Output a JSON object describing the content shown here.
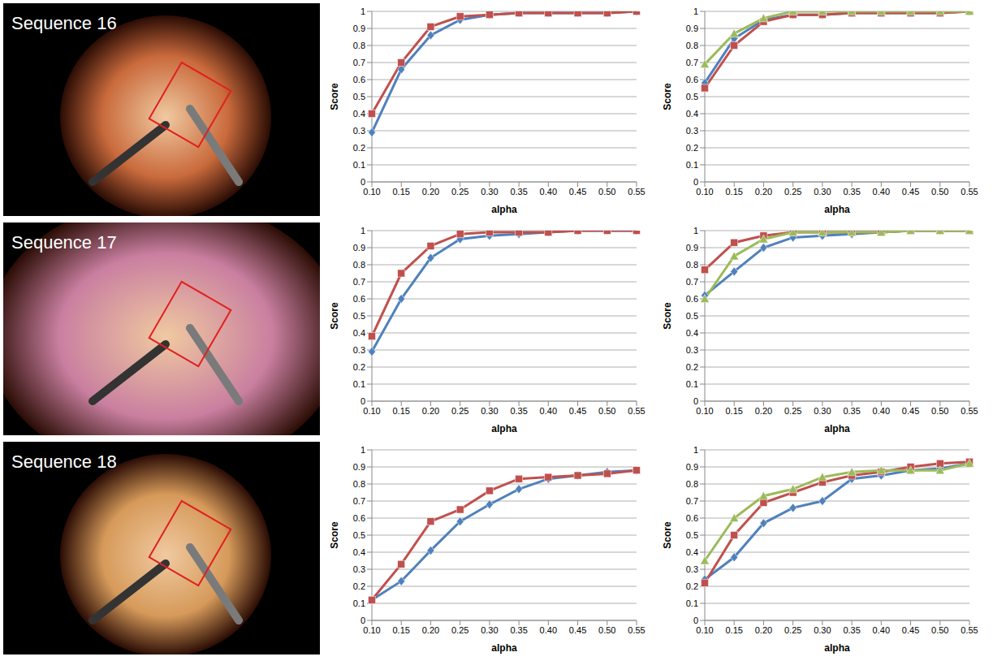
{
  "images": [
    {
      "label": "Sequence 16"
    },
    {
      "label": "Sequence 17"
    },
    {
      "label": "Sequence 18"
    }
  ],
  "chart_data": [
    {
      "type": "line",
      "x_label": "alpha",
      "y_label": "Score",
      "categories": [
        "0.10",
        "0.15",
        "0.20",
        "0.25",
        "0.30",
        "0.35",
        "0.40",
        "0.45",
        "0.50",
        "0.55"
      ],
      "ylim": [
        0,
        1
      ],
      "yticks": [
        0,
        0.1,
        0.2,
        0.3,
        0.4,
        0.5,
        0.6,
        0.7,
        0.8,
        0.9,
        1
      ],
      "grid": true,
      "series": [
        {
          "color": "#4F81BD",
          "marker": "diamond",
          "values": [
            0.29,
            0.66,
            0.86,
            0.95,
            0.98,
            0.99,
            0.99,
            0.99,
            0.99,
            1.0
          ]
        },
        {
          "color": "#C0504D",
          "marker": "square",
          "values": [
            0.4,
            0.7,
            0.91,
            0.97,
            0.98,
            0.99,
            0.99,
            0.99,
            0.99,
            1.0
          ]
        }
      ]
    },
    {
      "type": "line",
      "x_label": "alpha",
      "y_label": "Score",
      "categories": [
        "0.10",
        "0.15",
        "0.20",
        "0.25",
        "0.30",
        "0.35",
        "0.40",
        "0.45",
        "0.50",
        "0.55"
      ],
      "ylim": [
        0,
        1
      ],
      "yticks": [
        0,
        0.1,
        0.2,
        0.3,
        0.4,
        0.5,
        0.6,
        0.7,
        0.8,
        0.9,
        1
      ],
      "grid": true,
      "series": [
        {
          "color": "#4F81BD",
          "marker": "diamond",
          "values": [
            0.58,
            0.84,
            0.95,
            0.98,
            0.98,
            0.99,
            0.99,
            0.99,
            0.99,
            1.0
          ]
        },
        {
          "color": "#C0504D",
          "marker": "square",
          "values": [
            0.55,
            0.8,
            0.94,
            0.98,
            0.98,
            0.99,
            0.99,
            0.99,
            0.99,
            1.0
          ]
        },
        {
          "color": "#9BBB59",
          "marker": "triangle",
          "values": [
            0.69,
            0.87,
            0.96,
            1.0,
            1.0,
            1.0,
            1.0,
            1.0,
            1.0,
            1.0
          ]
        }
      ]
    },
    {
      "type": "line",
      "x_label": "alpha",
      "y_label": "Score",
      "categories": [
        "0.10",
        "0.15",
        "0.20",
        "0.25",
        "0.30",
        "0.35",
        "0.40",
        "0.45",
        "0.50",
        "0.55"
      ],
      "ylim": [
        0,
        1
      ],
      "yticks": [
        0,
        0.1,
        0.2,
        0.3,
        0.4,
        0.5,
        0.6,
        0.7,
        0.8,
        0.9,
        1
      ],
      "grid": true,
      "series": [
        {
          "color": "#4F81BD",
          "marker": "diamond",
          "values": [
            0.29,
            0.6,
            0.84,
            0.95,
            0.97,
            0.98,
            0.99,
            1.0,
            1.0,
            1.0
          ]
        },
        {
          "color": "#C0504D",
          "marker": "square",
          "values": [
            0.38,
            0.75,
            0.91,
            0.98,
            0.99,
            0.99,
            0.99,
            1.0,
            1.0,
            1.0
          ]
        }
      ]
    },
    {
      "type": "line",
      "x_label": "alpha",
      "y_label": "Score",
      "categories": [
        "0.10",
        "0.15",
        "0.20",
        "0.25",
        "0.30",
        "0.35",
        "0.40",
        "0.45",
        "0.50",
        "0.55"
      ],
      "ylim": [
        0,
        1
      ],
      "yticks": [
        0,
        0.1,
        0.2,
        0.3,
        0.4,
        0.5,
        0.6,
        0.7,
        0.8,
        0.9,
        1
      ],
      "grid": true,
      "series": [
        {
          "color": "#4F81BD",
          "marker": "diamond",
          "values": [
            0.62,
            0.76,
            0.9,
            0.96,
            0.97,
            0.98,
            0.99,
            1.0,
            1.0,
            1.0
          ]
        },
        {
          "color": "#C0504D",
          "marker": "square",
          "values": [
            0.77,
            0.93,
            0.97,
            0.99,
            0.99,
            0.99,
            0.99,
            1.0,
            1.0,
            1.0
          ]
        },
        {
          "color": "#9BBB59",
          "marker": "triangle",
          "values": [
            0.6,
            0.85,
            0.95,
            0.99,
            0.99,
            0.99,
            0.99,
            1.0,
            1.0,
            1.0
          ]
        }
      ]
    },
    {
      "type": "line",
      "x_label": "alpha",
      "y_label": "Score",
      "categories": [
        "0.10",
        "0.15",
        "0.20",
        "0.25",
        "0.30",
        "0.35",
        "0.40",
        "0.45",
        "0.50",
        "0.55"
      ],
      "ylim": [
        0,
        1
      ],
      "yticks": [
        0,
        0.1,
        0.2,
        0.3,
        0.4,
        0.5,
        0.6,
        0.7,
        0.8,
        0.9,
        1
      ],
      "grid": true,
      "series": [
        {
          "color": "#4F81BD",
          "marker": "diamond",
          "values": [
            0.12,
            0.23,
            0.41,
            0.58,
            0.68,
            0.77,
            0.83,
            0.85,
            0.87,
            0.88
          ]
        },
        {
          "color": "#C0504D",
          "marker": "square",
          "values": [
            0.12,
            0.33,
            0.58,
            0.65,
            0.76,
            0.83,
            0.84,
            0.85,
            0.86,
            0.88
          ]
        }
      ]
    },
    {
      "type": "line",
      "x_label": "alpha",
      "y_label": "Score",
      "categories": [
        "0.10",
        "0.15",
        "0.20",
        "0.25",
        "0.30",
        "0.35",
        "0.40",
        "0.45",
        "0.50",
        "0.55"
      ],
      "ylim": [
        0,
        1
      ],
      "yticks": [
        0,
        0.1,
        0.2,
        0.3,
        0.4,
        0.5,
        0.6,
        0.7,
        0.8,
        0.9,
        1
      ],
      "grid": true,
      "series": [
        {
          "color": "#4F81BD",
          "marker": "diamond",
          "values": [
            0.24,
            0.37,
            0.57,
            0.66,
            0.7,
            0.83,
            0.85,
            0.88,
            0.89,
            0.92
          ]
        },
        {
          "color": "#C0504D",
          "marker": "square",
          "values": [
            0.22,
            0.5,
            0.69,
            0.75,
            0.81,
            0.85,
            0.87,
            0.9,
            0.92,
            0.93
          ]
        },
        {
          "color": "#9BBB59",
          "marker": "triangle",
          "values": [
            0.35,
            0.6,
            0.73,
            0.77,
            0.84,
            0.87,
            0.88,
            0.88,
            0.88,
            0.92
          ]
        }
      ]
    }
  ]
}
